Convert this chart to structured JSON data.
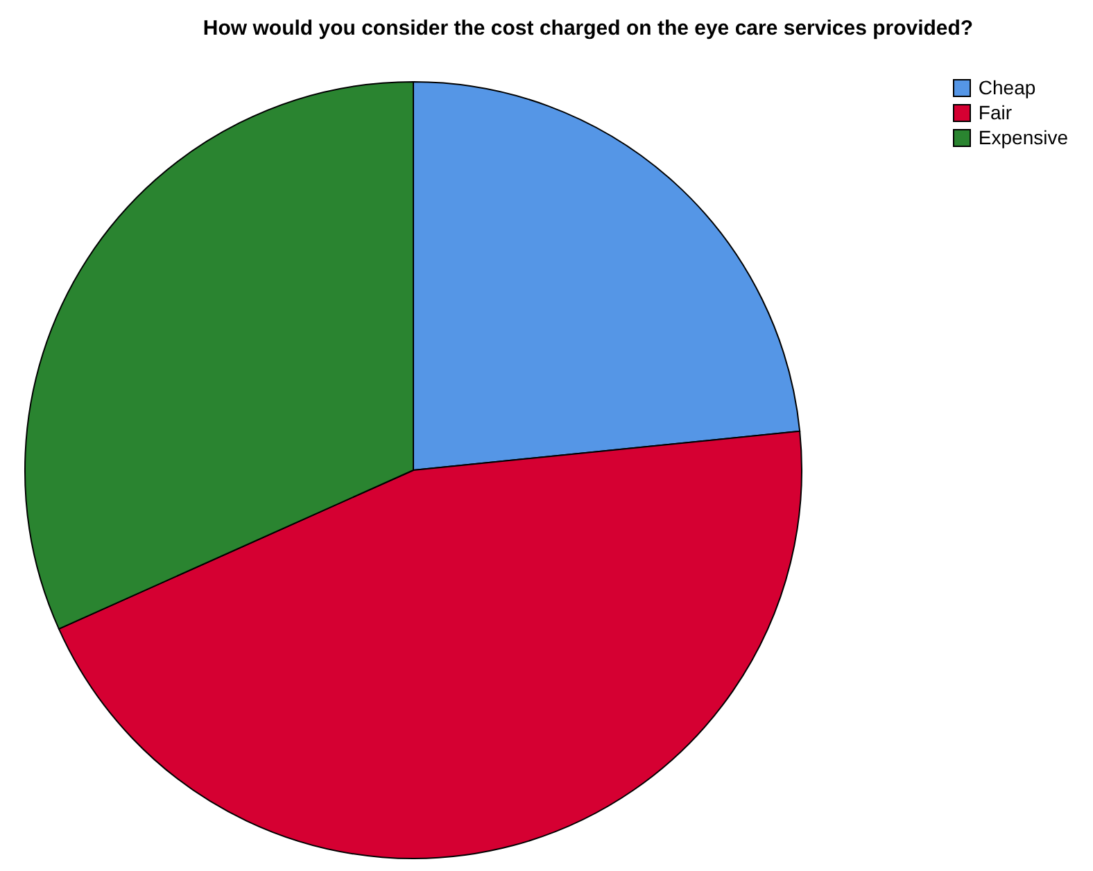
{
  "chart_data": {
    "type": "pie",
    "title": "How would you consider the cost charged on the eye care services provided?",
    "categories": [
      "Cheap",
      "Fair",
      "Expensive"
    ],
    "values": [
      23.4,
      44.9,
      31.7
    ],
    "colors": [
      "#5596e6",
      "#d50032",
      "#2a8430"
    ],
    "legend": "top right"
  }
}
